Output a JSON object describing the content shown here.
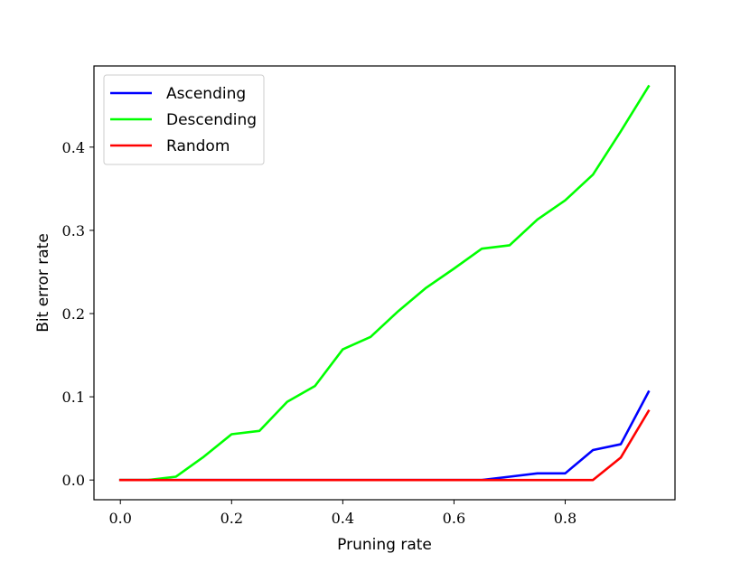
{
  "chart_data": {
    "type": "line",
    "xlabel": "Pruning rate",
    "ylabel": "Bit error rate",
    "xlim": [
      -0.0475,
      0.9975
    ],
    "ylim": [
      -0.0237,
      0.4975
    ],
    "xticks": [
      0.0,
      0.2,
      0.4,
      0.6,
      0.8
    ],
    "xtick_labels": [
      "0.0",
      "0.2",
      "0.4",
      "0.6",
      "0.8"
    ],
    "yticks": [
      0.0,
      0.1,
      0.2,
      0.3,
      0.4
    ],
    "ytick_labels": [
      "0.0",
      "0.1",
      "0.2",
      "0.3",
      "0.4"
    ],
    "grid": false,
    "legend_position": "top-left",
    "x": [
      0.0,
      0.05,
      0.1,
      0.15,
      0.2,
      0.25,
      0.3,
      0.35,
      0.4,
      0.45,
      0.5,
      0.55,
      0.6,
      0.65,
      0.7,
      0.75,
      0.8,
      0.85,
      0.9,
      0.95
    ],
    "series": [
      {
        "name": "Ascending",
        "color": "#0000ff",
        "values": [
          0,
          0,
          0,
          0,
          0,
          0,
          0,
          0,
          0,
          0,
          0,
          0,
          0,
          0,
          0.004,
          0.008,
          0.008,
          0.036,
          0.043,
          0.106
        ]
      },
      {
        "name": "Descending",
        "color": "#00ff00",
        "values": [
          0,
          0,
          0.004,
          0.028,
          0.055,
          0.059,
          0.094,
          0.113,
          0.157,
          0.172,
          0.203,
          0.231,
          0.254,
          0.278,
          0.282,
          0.313,
          0.336,
          0.367,
          0.419,
          0.473
        ]
      },
      {
        "name": "Random",
        "color": "#ff0000",
        "values": [
          0,
          0,
          0,
          0,
          0,
          0,
          0,
          0,
          0,
          0,
          0,
          0,
          0,
          0,
          0,
          0,
          0,
          0,
          0.027,
          0.083
        ]
      }
    ]
  }
}
